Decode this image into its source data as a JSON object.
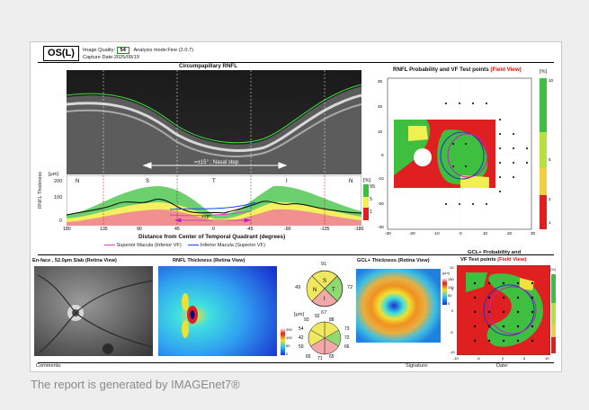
{
  "header": {
    "eye": "OS(L)",
    "image_quality_label": "Image Quality:",
    "image_quality_value": "54",
    "analysis_mode": "Analysis mode:Fine (2.0.7)",
    "capture_date": "Capture Date:2025/09/19"
  },
  "bscan": {
    "title": "Circumpapillary RNFL",
    "nasal_step_label": "=±15° : Nasal step"
  },
  "profile": {
    "y_unit": "[µm]",
    "y_label": "RNFL Thickness",
    "y_ticks": [
      "200",
      "100",
      "0"
    ],
    "sectors": [
      "N",
      "S",
      "T",
      "I",
      "N"
    ],
    "x_ticks": [
      "180",
      "135",
      "90",
      "45",
      "0",
      "-45",
      "-90",
      "-135",
      "-180"
    ],
    "x_label": "Distance from Center of Temporal Quadrant (degrees)",
    "pct_unit": "[%]",
    "pct_ticks": [
      "95",
      "5",
      "1"
    ],
    "deg_label": "=±8°",
    "legend": [
      {
        "label": "Superior Macula (Inferior VF)",
        "color": "#e040c0"
      },
      {
        "label": "Inferior Macula (Superior VF)",
        "color": "#2040ff"
      }
    ]
  },
  "rnfl_prob": {
    "title": "RNFL Probability and VF Test points",
    "field_view": "(Field View)",
    "unit": "[%]",
    "y_ticks": [
      "30",
      "20",
      "10",
      "0",
      "-10",
      "-20",
      "-30"
    ],
    "x_ticks": [
      "-30",
      "-20",
      "-10",
      "0",
      "10",
      "20",
      "30"
    ],
    "scale_ticks": [
      "10",
      "5",
      "2",
      "1"
    ]
  },
  "enface": {
    "title": "En-face , 52.0µm Slab (Retina View)"
  },
  "thickness_map": {
    "title": "RNFL Thickness (Retina View)"
  },
  "pie_top": {
    "top": "91",
    "left": "49",
    "right": "72",
    "bottom": "67",
    "labels": [
      "S",
      "N",
      "T",
      "I"
    ]
  },
  "pie_bottom": {
    "unit": "[µm]",
    "values": [
      "93",
      "92",
      "88",
      "54",
      "73",
      "42",
      "72",
      "50",
      "66",
      "65",
      "71",
      "65"
    ],
    "scale_ticks": [
      "200",
      "100",
      "50",
      "0"
    ]
  },
  "gcl_thickness": {
    "title": "GCL+ Thickness (Retina View)",
    "unit": "[µm]",
    "scale_ticks": [
      "150",
      "100",
      "50",
      "0"
    ]
  },
  "gcl_prob": {
    "title_line1": "GCL+ Probability and",
    "title_line2": "VF Test points",
    "field_view": "(Field View)",
    "unit": "[%]",
    "y_ticks": [
      "10",
      "5",
      "0",
      "-5",
      "-10"
    ],
    "x_ticks": [
      "-10",
      "-5",
      "0",
      "5",
      "10"
    ],
    "scale_ticks": [
      "10",
      "5",
      "2",
      "1"
    ]
  },
  "footer": {
    "comments": "Comments:",
    "signature": "Signature:",
    "date": "Date:"
  },
  "caption": "The report is generated by IMAGEnet7®",
  "colors": {
    "normal_green": "#3fbf3f",
    "borderline_yellow": "#f0f050",
    "abnormal_red": "#e02020",
    "accent_red": "#e01010"
  }
}
